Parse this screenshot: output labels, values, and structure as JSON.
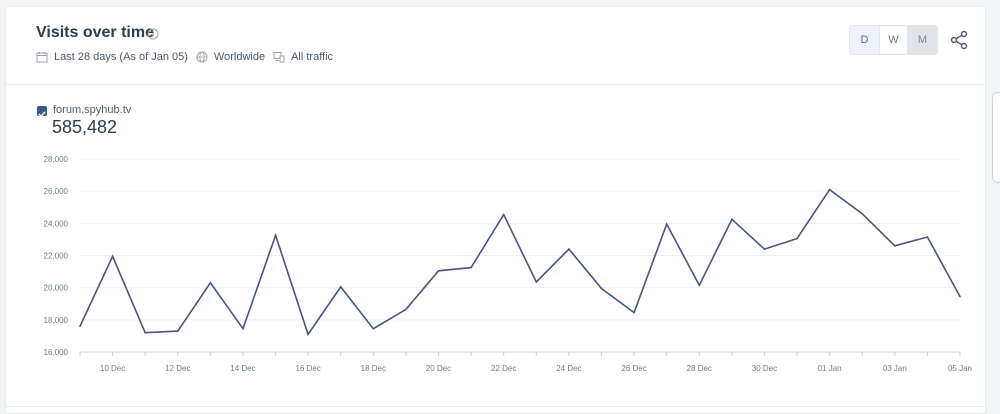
{
  "header": {
    "title": "Visits over time",
    "date_range": "Last 28 days (As of Jan 05)",
    "region": "Worldwide",
    "traffic": "All traffic"
  },
  "granularity": {
    "options": [
      "D",
      "W",
      "M"
    ],
    "selected": "D"
  },
  "legend": {
    "site": "forum.spyhub.tv",
    "total": "585,482"
  },
  "colors": {
    "line": "#44557f",
    "accent": "#3e5a8c"
  },
  "chart_data": {
    "type": "line",
    "x": [
      "09 Dec",
      "10 Dec",
      "11 Dec",
      "12 Dec",
      "13 Dec",
      "14 Dec",
      "15 Dec",
      "16 Dec",
      "17 Dec",
      "18 Dec",
      "19 Dec",
      "20 Dec",
      "21 Dec",
      "22 Dec",
      "23 Dec",
      "24 Dec",
      "25 Dec",
      "26 Dec",
      "27 Dec",
      "28 Dec",
      "29 Dec",
      "30 Dec",
      "31 Dec",
      "01 Jan",
      "02 Jan",
      "03 Jan",
      "04 Jan",
      "05 Jan"
    ],
    "series": [
      {
        "name": "forum.spyhub.tv",
        "values": [
          17600,
          21950,
          17200,
          17300,
          20300,
          17450,
          23250,
          17100,
          20050,
          17450,
          18650,
          21050,
          21250,
          24550,
          20350,
          22400,
          19950,
          18450,
          23950,
          20150,
          24250,
          22400,
          23050,
          26100,
          24600,
          22600,
          23150,
          19450
        ]
      }
    ],
    "tick_labels": [
      "10 Dec",
      "12 Dec",
      "14 Dec",
      "16 Dec",
      "18 Dec",
      "20 Dec",
      "22 Dec",
      "24 Dec",
      "26 Dec",
      "28 Dec",
      "30 Dec",
      "01 Jan",
      "03 Jan",
      "05 Jan"
    ],
    "y_ticks": [
      "16,000",
      "18,000",
      "20,000",
      "22,000",
      "24,000",
      "26,000",
      "28,000"
    ],
    "ylim": [
      16000,
      28000
    ],
    "grid": true
  }
}
